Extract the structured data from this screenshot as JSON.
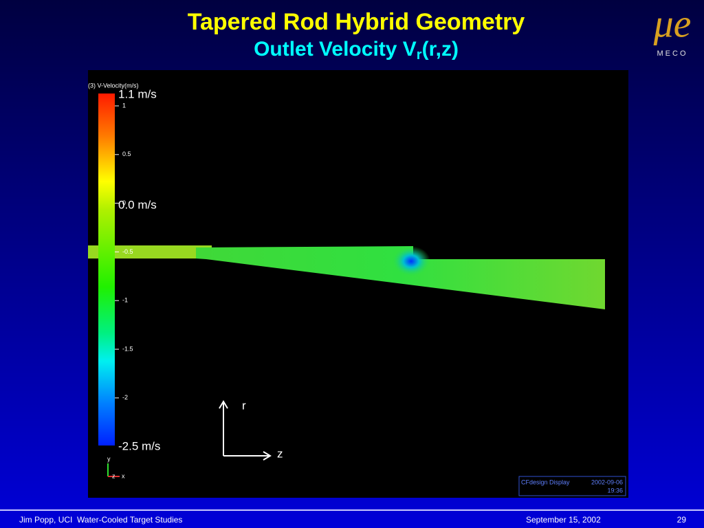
{
  "header": {
    "title": "Tapered Rod Hybrid Geometry",
    "subtitle": "Outlet Velocity V",
    "subtitle_subscript": "r",
    "subtitle_suffix": "(r,z)"
  },
  "logo": {
    "symbol": "μe",
    "name": "MECO"
  },
  "plot": {
    "legend_title": "(3) V-Velocity(m/s)",
    "legend_ticks": [
      "1",
      "0.5",
      "0",
      "-0.5",
      "-1",
      "-1.5",
      "-2"
    ],
    "annotations": [
      "1.1 m/s",
      "0.0 m/s",
      "-2.5 m/s"
    ],
    "axes": [
      "r",
      "z"
    ],
    "triad": [
      "y",
      "z",
      "x"
    ],
    "stamp": {
      "software": "CFdesign Display",
      "date": "2002-09-06",
      "time": "19:36"
    }
  },
  "footer": {
    "author": "Jim Popp, UCI  Water-Cooled Target Studies",
    "date": "September 15, 2002",
    "page": "29"
  }
}
